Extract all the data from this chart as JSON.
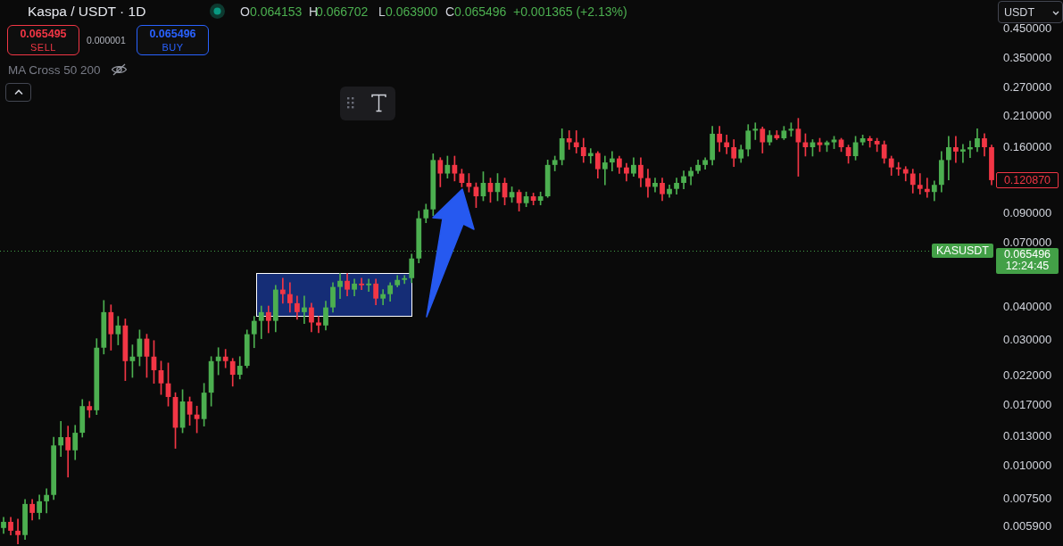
{
  "chart_data": {
    "type": "candlestick",
    "title": "Kaspa / USDT · 1D",
    "log": true,
    "ylim": [
      0.005,
      0.58
    ],
    "yticks": [
      {
        "value": 0.0059,
        "label": "0.005900"
      },
      {
        "value": 0.0075,
        "label": "0.007500"
      },
      {
        "value": 0.01,
        "label": "0.010000"
      },
      {
        "value": 0.013,
        "label": "0.013000"
      },
      {
        "value": 0.017,
        "label": "0.017000"
      },
      {
        "value": 0.022,
        "label": "0.022000"
      },
      {
        "value": 0.03,
        "label": "0.030000"
      },
      {
        "value": 0.04,
        "label": "0.040000"
      },
      {
        "value": 0.07,
        "label": "0.070000"
      },
      {
        "value": 0.09,
        "label": "0.090000"
      },
      {
        "value": 0.16,
        "label": "0.160000"
      },
      {
        "value": 0.21,
        "label": "0.210000"
      },
      {
        "value": 0.27,
        "label": "0.270000"
      },
      {
        "value": 0.35,
        "label": "0.350000"
      },
      {
        "value": 0.45,
        "label": "0.450000"
      }
    ],
    "categories": [
      null,
      null,
      null,
      null,
      null,
      null,
      null,
      null,
      null,
      null,
      null,
      null,
      null,
      null,
      null,
      null,
      null,
      null,
      null,
      null,
      null,
      null,
      null,
      null,
      null,
      null,
      null,
      null,
      null,
      null,
      null,
      null,
      null,
      null,
      null,
      null,
      null,
      null,
      null,
      null,
      null,
      null,
      null,
      null,
      null,
      null,
      null,
      null,
      null,
      null,
      null,
      null,
      null,
      null,
      null,
      null,
      null,
      null,
      null,
      null,
      null,
      null,
      null,
      null,
      null,
      null,
      null,
      null,
      null,
      null,
      null,
      null,
      null,
      null,
      null,
      null,
      null,
      null,
      null,
      null,
      null,
      null,
      null,
      null,
      null,
      null,
      null,
      null,
      null,
      null,
      null,
      null,
      null,
      null,
      null,
      null,
      null,
      null,
      null,
      null,
      null,
      null,
      null,
      null,
      null,
      null,
      null,
      null,
      null,
      null,
      null,
      null,
      null,
      null,
      null,
      null,
      null,
      null,
      null,
      null,
      null,
      null,
      null,
      null,
      null,
      null,
      null,
      null,
      null,
      null,
      null,
      null,
      null,
      null,
      null,
      null,
      null,
      null,
      null
    ],
    "ohlc": [
      [
        0.00585,
        0.00642,
        0.00558,
        0.00617
      ],
      [
        0.00617,
        0.00642,
        0.0055,
        0.00571
      ],
      [
        0.00571,
        0.00632,
        0.00509,
        0.0055
      ],
      [
        0.0055,
        0.0075,
        0.00529,
        0.00721
      ],
      [
        0.00721,
        0.0075,
        0.00627,
        0.00667
      ],
      [
        0.00667,
        0.0078,
        0.00632,
        0.00738
      ],
      [
        0.00738,
        0.00823,
        0.00667,
        0.0078
      ],
      [
        0.0078,
        0.0129,
        0.0075,
        0.012
      ],
      [
        0.012,
        0.0148,
        0.0109,
        0.0129
      ],
      [
        0.0129,
        0.0142,
        0.00911,
        0.0115
      ],
      [
        0.0115,
        0.0143,
        0.0106,
        0.0134
      ],
      [
        0.0134,
        0.0179,
        0.0129,
        0.0169
      ],
      [
        0.0169,
        0.0176,
        0.0153,
        0.0163
      ],
      [
        0.0163,
        0.0304,
        0.0157,
        0.0281
      ],
      [
        0.0281,
        0.0424,
        0.0266,
        0.0383
      ],
      [
        0.0383,
        0.0408,
        0.0275,
        0.0316
      ],
      [
        0.0316,
        0.0369,
        0.0288,
        0.0341
      ],
      [
        0.0341,
        0.0361,
        0.0211,
        0.025
      ],
      [
        0.025,
        0.0288,
        0.0217,
        0.026
      ],
      [
        0.026,
        0.0328,
        0.024,
        0.0304
      ],
      [
        0.0304,
        0.0316,
        0.0217,
        0.026
      ],
      [
        0.026,
        0.0299,
        0.0206,
        0.0231
      ],
      [
        0.0231,
        0.025,
        0.0187,
        0.0206
      ],
      [
        0.0206,
        0.0246,
        0.0169,
        0.0183
      ],
      [
        0.0183,
        0.019,
        0.0117,
        0.014
      ],
      [
        0.014,
        0.0195,
        0.0134,
        0.0176
      ],
      [
        0.0176,
        0.0183,
        0.0143,
        0.0157
      ],
      [
        0.0157,
        0.0169,
        0.0134,
        0.0151
      ],
      [
        0.0151,
        0.0206,
        0.0142,
        0.019
      ],
      [
        0.019,
        0.026,
        0.0169,
        0.025
      ],
      [
        0.025,
        0.0281,
        0.0222,
        0.026
      ],
      [
        0.026,
        0.0277,
        0.0236,
        0.025
      ],
      [
        0.025,
        0.0256,
        0.0201,
        0.0222
      ],
      [
        0.0222,
        0.026,
        0.0214,
        0.024
      ],
      [
        0.024,
        0.0328,
        0.0236,
        0.0316
      ],
      [
        0.0316,
        0.0369,
        0.0281,
        0.0355
      ],
      [
        0.0355,
        0.0404,
        0.0304,
        0.0383
      ],
      [
        0.0383,
        0.0404,
        0.032,
        0.0355
      ],
      [
        0.0355,
        0.0484,
        0.0323,
        0.0466
      ],
      [
        0.0466,
        0.0515,
        0.0414,
        0.0448
      ],
      [
        0.0448,
        0.0495,
        0.0383,
        0.0414
      ],
      [
        0.0414,
        0.0441,
        0.036,
        0.0383
      ],
      [
        0.0383,
        0.0441,
        0.0347,
        0.0399
      ],
      [
        0.0399,
        0.0414,
        0.0323,
        0.035
      ],
      [
        0.035,
        0.0369,
        0.032,
        0.0341
      ],
      [
        0.0341,
        0.0421,
        0.0328,
        0.0399
      ],
      [
        0.0399,
        0.0495,
        0.0383,
        0.0477
      ],
      [
        0.0477,
        0.0536,
        0.0431,
        0.0503
      ],
      [
        0.0503,
        0.0536,
        0.0441,
        0.0466
      ],
      [
        0.0466,
        0.0511,
        0.0441,
        0.0491
      ],
      [
        0.0491,
        0.0515,
        0.0466,
        0.0484
      ],
      [
        0.0484,
        0.0511,
        0.0459,
        0.0491
      ],
      [
        0.0491,
        0.0511,
        0.0408,
        0.0431
      ],
      [
        0.0431,
        0.0466,
        0.0408,
        0.0448
      ],
      [
        0.0448,
        0.0495,
        0.0421,
        0.0484
      ],
      [
        0.0484,
        0.0527,
        0.0477,
        0.0507
      ],
      [
        0.0507,
        0.0527,
        0.0491,
        0.0515
      ],
      [
        0.0515,
        0.0635,
        0.0495,
        0.0611
      ],
      [
        0.0611,
        0.0923,
        0.0588,
        0.0867
      ],
      [
        0.0867,
        0.0981,
        0.0834,
        0.0937
      ],
      [
        0.0937,
        0.152,
        0.0887,
        0.144
      ],
      [
        0.144,
        0.147,
        0.114,
        0.128
      ],
      [
        0.128,
        0.149,
        0.123,
        0.138
      ],
      [
        0.138,
        0.149,
        0.12,
        0.128
      ],
      [
        0.128,
        0.133,
        0.114,
        0.118
      ],
      [
        0.118,
        0.128,
        0.109,
        0.114
      ],
      [
        0.114,
        0.118,
        0.0952,
        0.105
      ],
      [
        0.105,
        0.13,
        0.101,
        0.118
      ],
      [
        0.118,
        0.123,
        0.0996,
        0.109
      ],
      [
        0.109,
        0.128,
        0.101,
        0.118
      ],
      [
        0.118,
        0.123,
        0.0974,
        0.104
      ],
      [
        0.104,
        0.114,
        0.0996,
        0.109
      ],
      [
        0.109,
        0.111,
        0.0923,
        0.0989
      ],
      [
        0.0989,
        0.109,
        0.0959,
        0.105
      ],
      [
        0.105,
        0.108,
        0.0974,
        0.101
      ],
      [
        0.101,
        0.109,
        0.0974,
        0.105
      ],
      [
        0.105,
        0.144,
        0.104,
        0.138
      ],
      [
        0.138,
        0.149,
        0.131,
        0.144
      ],
      [
        0.144,
        0.189,
        0.138,
        0.174
      ],
      [
        0.174,
        0.186,
        0.158,
        0.168
      ],
      [
        0.168,
        0.186,
        0.153,
        0.161
      ],
      [
        0.161,
        0.174,
        0.141,
        0.149
      ],
      [
        0.149,
        0.159,
        0.14,
        0.153
      ],
      [
        0.153,
        0.155,
        0.123,
        0.133
      ],
      [
        0.133,
        0.149,
        0.116,
        0.141
      ],
      [
        0.141,
        0.155,
        0.131,
        0.146
      ],
      [
        0.146,
        0.149,
        0.128,
        0.135
      ],
      [
        0.135,
        0.14,
        0.12,
        0.128
      ],
      [
        0.128,
        0.147,
        0.125,
        0.138
      ],
      [
        0.138,
        0.147,
        0.114,
        0.123
      ],
      [
        0.123,
        0.133,
        0.104,
        0.114
      ],
      [
        0.114,
        0.123,
        0.109,
        0.118
      ],
      [
        0.118,
        0.123,
        0.101,
        0.107
      ],
      [
        0.107,
        0.116,
        0.104,
        0.112
      ],
      [
        0.112,
        0.123,
        0.107,
        0.118
      ],
      [
        0.118,
        0.131,
        0.112,
        0.125
      ],
      [
        0.125,
        0.135,
        0.116,
        0.131
      ],
      [
        0.131,
        0.144,
        0.128,
        0.138
      ],
      [
        0.138,
        0.147,
        0.133,
        0.144
      ],
      [
        0.144,
        0.193,
        0.138,
        0.181
      ],
      [
        0.181,
        0.193,
        0.155,
        0.168
      ],
      [
        0.168,
        0.179,
        0.152,
        0.161
      ],
      [
        0.161,
        0.172,
        0.136,
        0.146
      ],
      [
        0.146,
        0.164,
        0.141,
        0.158
      ],
      [
        0.158,
        0.196,
        0.149,
        0.186
      ],
      [
        0.186,
        0.199,
        0.172,
        0.189
      ],
      [
        0.189,
        0.192,
        0.153,
        0.168
      ],
      [
        0.168,
        0.186,
        0.164,
        0.179
      ],
      [
        0.179,
        0.186,
        0.172,
        0.174
      ],
      [
        0.174,
        0.193,
        0.172,
        0.186
      ],
      [
        0.186,
        0.199,
        0.177,
        0.189
      ],
      [
        0.189,
        0.207,
        0.125,
        0.168
      ],
      [
        0.168,
        0.181,
        0.149,
        0.161
      ],
      [
        0.161,
        0.172,
        0.149,
        0.168
      ],
      [
        0.168,
        0.174,
        0.155,
        0.164
      ],
      [
        0.164,
        0.17,
        0.155,
        0.168
      ],
      [
        0.168,
        0.177,
        0.159,
        0.172
      ],
      [
        0.172,
        0.174,
        0.155,
        0.161
      ],
      [
        0.161,
        0.164,
        0.14,
        0.149
      ],
      [
        0.149,
        0.177,
        0.144,
        0.168
      ],
      [
        0.168,
        0.179,
        0.164,
        0.174
      ],
      [
        0.174,
        0.177,
        0.161,
        0.17
      ],
      [
        0.17,
        0.174,
        0.155,
        0.165
      ],
      [
        0.165,
        0.17,
        0.14,
        0.146
      ],
      [
        0.146,
        0.149,
        0.126,
        0.135
      ],
      [
        0.135,
        0.141,
        0.126,
        0.133
      ],
      [
        0.133,
        0.136,
        0.12,
        0.128
      ],
      [
        0.128,
        0.133,
        0.108,
        0.116
      ],
      [
        0.116,
        0.128,
        0.107,
        0.112
      ],
      [
        0.112,
        0.123,
        0.104,
        0.109
      ],
      [
        0.109,
        0.12,
        0.101,
        0.116
      ],
      [
        0.116,
        0.155,
        0.109,
        0.144
      ],
      [
        0.144,
        0.177,
        0.121,
        0.161
      ],
      [
        0.161,
        0.177,
        0.141,
        0.155
      ],
      [
        0.155,
        0.165,
        0.141,
        0.158
      ],
      [
        0.158,
        0.17,
        0.147,
        0.161
      ],
      [
        0.161,
        0.189,
        0.155,
        0.174
      ],
      [
        0.174,
        0.181,
        0.149,
        0.161
      ],
      [
        0.161,
        0.164,
        0.116,
        0.12087
      ]
    ],
    "colors": [
      "#4caf50",
      "#f23645",
      "#f23645",
      "#4caf50",
      "#f23645",
      "#4caf50",
      "#4caf50",
      "#4caf50",
      "#4caf50",
      "#f23645",
      "#4caf50",
      "#4caf50",
      "#f23645",
      "#4caf50",
      "#4caf50",
      "#f23645",
      "#4caf50",
      "#f23645",
      "#4caf50",
      "#4caf50",
      "#f23645",
      "#f23645",
      "#f23645",
      "#f23645",
      "#f23645",
      "#4caf50",
      "#f23645",
      "#f23645",
      "#4caf50",
      "#4caf50",
      "#4caf50",
      "#f23645",
      "#f23645",
      "#4caf50",
      "#4caf50",
      "#4caf50",
      "#4caf50",
      "#f23645",
      "#4caf50",
      "#f23645",
      "#f23645",
      "#f23645",
      "#4caf50",
      "#f23645",
      "#f23645",
      "#4caf50",
      "#4caf50",
      "#4caf50",
      "#f23645",
      "#4caf50",
      "#f23645",
      "#4caf50",
      "#f23645",
      "#4caf50",
      "#4caf50",
      "#4caf50",
      "#4caf50",
      "#4caf50",
      "#4caf50",
      "#4caf50",
      "#4caf50",
      "#f23645",
      "#4caf50",
      "#f23645",
      "#f23645",
      "#f23645",
      "#f23645",
      "#4caf50",
      "#f23645",
      "#4caf50",
      "#f23645",
      "#4caf50",
      "#f23645",
      "#4caf50",
      "#f23645",
      "#4caf50",
      "#4caf50",
      "#4caf50",
      "#4caf50",
      "#f23645",
      "#f23645",
      "#f23645",
      "#4caf50",
      "#f23645",
      "#4caf50",
      "#4caf50",
      "#f23645",
      "#f23645",
      "#4caf50",
      "#f23645",
      "#f23645",
      "#4caf50",
      "#f23645",
      "#4caf50",
      "#4caf50",
      "#4caf50",
      "#4caf50",
      "#4caf50",
      "#4caf50",
      "#4caf50",
      "#f23645",
      "#f23645",
      "#f23645",
      "#4caf50",
      "#4caf50",
      "#4caf50",
      "#f23645",
      "#4caf50",
      "#f23645",
      "#4caf50",
      "#4caf50",
      "#f23645",
      "#f23645",
      "#4caf50",
      "#f23645",
      "#4caf50",
      "#4caf50",
      "#f23645",
      "#f23645",
      "#4caf50",
      "#4caf50",
      "#f23645",
      "#f23645",
      "#f23645",
      "#f23645",
      "#f23645",
      "#f23645",
      "#f23645",
      "#f23645",
      "#f23645",
      "#4caf50",
      "#4caf50",
      "#4caf50",
      "#f23645",
      "#4caf50",
      "#4caf50",
      "#4caf50",
      "#f23645",
      "#f23645"
    ],
    "ref_lines": [
      {
        "axis": "y",
        "value": 0.065496,
        "label": "KASUSDT",
        "color": "#43a047",
        "line_style": "dotted"
      }
    ],
    "annotations": [
      "O",
      "0.064153",
      "H",
      "0.066702",
      "L",
      "0.063900",
      "C",
      "0.065496",
      "+0.001365 (+2.13%)",
      "0.065495",
      "SELL",
      "0.000001",
      "0.065496",
      "BUY",
      "MA Cross 50 200",
      "USDT",
      "12:24:45",
      "0.120870"
    ]
  }
}
